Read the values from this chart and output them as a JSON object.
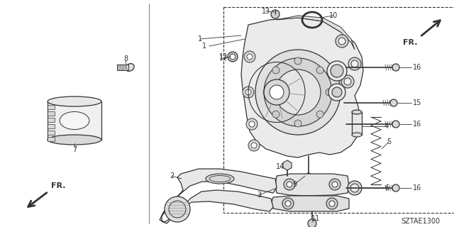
{
  "bg_color": "#ffffff",
  "fig_width": 6.4,
  "fig_height": 3.2,
  "dpi": 100,
  "diagram_code": "SZTAE1300",
  "dark": "#333333",
  "gray": "#888888",
  "light_gray": "#cccccc",
  "mid_gray": "#999999"
}
